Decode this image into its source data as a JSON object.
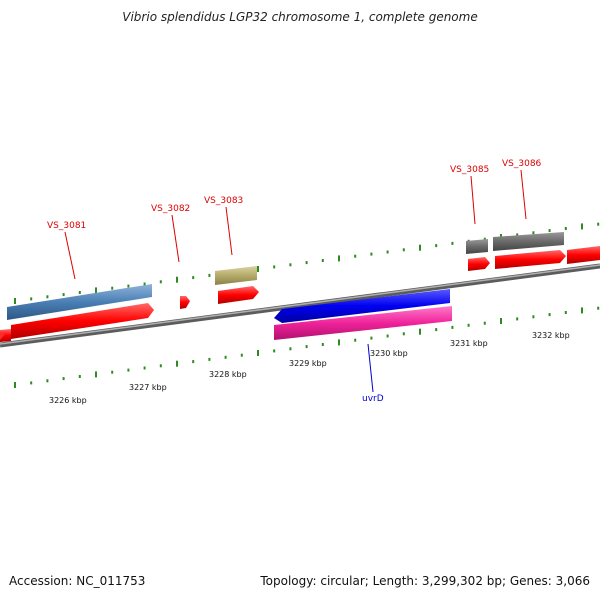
{
  "title": "Vibrio splendidus LGP32 chromosome 1, complete genome",
  "footer": {
    "accession": "Accession: NC_011753",
    "summary": "Topology: circular; Length: 3,299,302 bp; Genes: 3,066"
  },
  "colors": {
    "backbone": "#8a8a8a",
    "ticks": "#2e8b20",
    "label_top": "#dd0000",
    "label_bottom": "#0000cc"
  },
  "ruler_labels": [
    "3226 kbp",
    "3227 kbp",
    "3228 kbp",
    "3229 kbp",
    "3230 kbp",
    "3231 kbp",
    "3232 kbp"
  ],
  "genes": [
    {
      "label": "VS_3081",
      "color": "#dd0000"
    },
    {
      "label": "VS_3082",
      "color": "#dd0000"
    },
    {
      "label": "VS_3083",
      "color": "#dd0000"
    },
    {
      "label": "VS_3085",
      "color": "#dd0000"
    },
    {
      "label": "VS_3086",
      "color": "#dd0000"
    },
    {
      "label": "uvrD",
      "color": "#0000cc"
    }
  ]
}
